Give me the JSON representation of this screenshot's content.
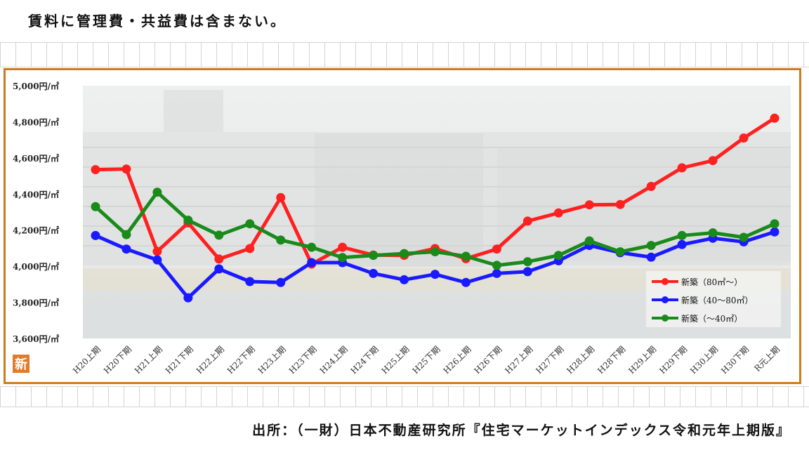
{
  "header": {
    "note": "賃料に管理費・共益費は含まない。"
  },
  "footer": {
    "source": "出所：（一財）日本不動産研究所『住宅マーケットインデックス令和元年上期版』"
  },
  "badge": {
    "label": "新",
    "color": "#e07b2e"
  },
  "colors": {
    "frame": "#d07a1e",
    "grid_bg": "#f0f0f0"
  },
  "chart_data": {
    "type": "line",
    "title": "",
    "xlabel": "",
    "ylabel": "",
    "ylim": [
      3600,
      5000
    ],
    "yticks": [
      3600,
      3800,
      4000,
      4200,
      4400,
      4600,
      4800,
      5000
    ],
    "ytick_labels": [
      "3,600円/㎡",
      "3,800円/㎡",
      "4,000円/㎡",
      "4,200円/㎡",
      "4,400円/㎡",
      "4,600円/㎡",
      "4,800円/㎡",
      "5,000円/㎡"
    ],
    "grid": false,
    "legend_position": "bottom-right",
    "categories": [
      "H20上期",
      "H20下期",
      "H21上期",
      "H21下期",
      "H22上期",
      "H22下期",
      "H23上期",
      "H23下期",
      "H24上期",
      "H24下期",
      "H25上期",
      "H25下期",
      "H26上期",
      "H26下期",
      "H27上期",
      "H27下期",
      "H28上期",
      "H28下期",
      "H29上期",
      "H29下期",
      "H30上期",
      "H30下期",
      "R元上期"
    ],
    "series": [
      {
        "name": "新築（80㎡～）",
        "color": "#ff2020",
        "values": [
          4535,
          4538,
          4082,
          4240,
          4040,
          4098,
          4380,
          4012,
          4105,
          4062,
          4060,
          4098,
          4042,
          4095,
          4250,
          4295,
          4340,
          4342,
          4442,
          4545,
          4585,
          4710,
          4820
        ]
      },
      {
        "name": "新築（40～80㎡）",
        "color": "#1a1aff",
        "values": [
          4170,
          4095,
          4035,
          3825,
          3985,
          3915,
          3910,
          4020,
          4020,
          3960,
          3925,
          3955,
          3910,
          3960,
          3970,
          4030,
          4115,
          4075,
          4050,
          4120,
          4155,
          4135,
          4190
        ]
      },
      {
        "name": "新築（～40㎡）",
        "color": "#1a8a1a",
        "values": [
          4330,
          4175,
          4410,
          4255,
          4172,
          4235,
          4145,
          4105,
          4048,
          4060,
          4070,
          4080,
          4055,
          4005,
          4025,
          4060,
          4140,
          4080,
          4115,
          4170,
          4185,
          4160,
          4235
        ]
      }
    ]
  }
}
